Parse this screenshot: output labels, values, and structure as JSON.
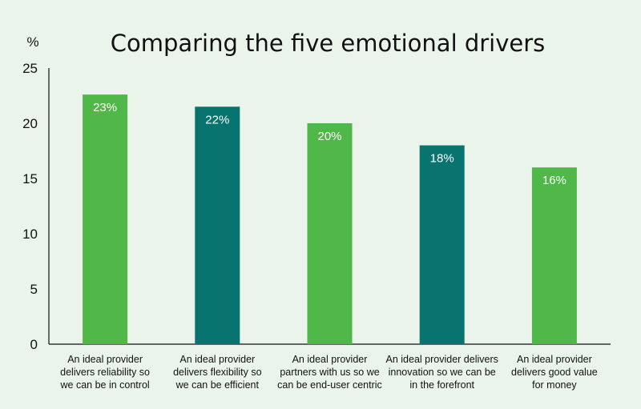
{
  "chart_data": {
    "type": "bar",
    "title": "Comparing the five emotional drivers",
    "ylabel": "%",
    "xlabel": "",
    "ylim": [
      0,
      25
    ],
    "yticks": [
      0,
      5,
      10,
      15,
      20,
      25
    ],
    "grid": false,
    "categories": [
      "An ideal provider delivers reliability so we can be in control",
      "An ideal provider delivers flexibility so we can be efficient",
      "An ideal provider partners with us so we can be end-user centric",
      "An ideal provider delivers innovation so we can be in the forefront",
      "An ideal provider delivers good value for money"
    ],
    "category_lines": [
      [
        "An ideal provider",
        "delivers reliability so",
        "we can be in control"
      ],
      [
        "An ideal provider",
        "delivers flexibility so",
        "we can be efficient"
      ],
      [
        "An ideal provider",
        "partners with us so we",
        "can be end-user centric"
      ],
      [
        "An ideal provider delivers",
        "innovation so we can be",
        "in the forefront"
      ],
      [
        "An ideal provider",
        "delivers good value",
        "for money"
      ]
    ],
    "values": [
      22.6,
      21.5,
      20,
      18,
      16
    ],
    "data_labels": [
      "23%",
      "22%",
      "20%",
      "18%",
      "16%"
    ],
    "bar_colors": [
      "#50b848",
      "#08736f",
      "#50b848",
      "#08736f",
      "#50b848"
    ]
  }
}
